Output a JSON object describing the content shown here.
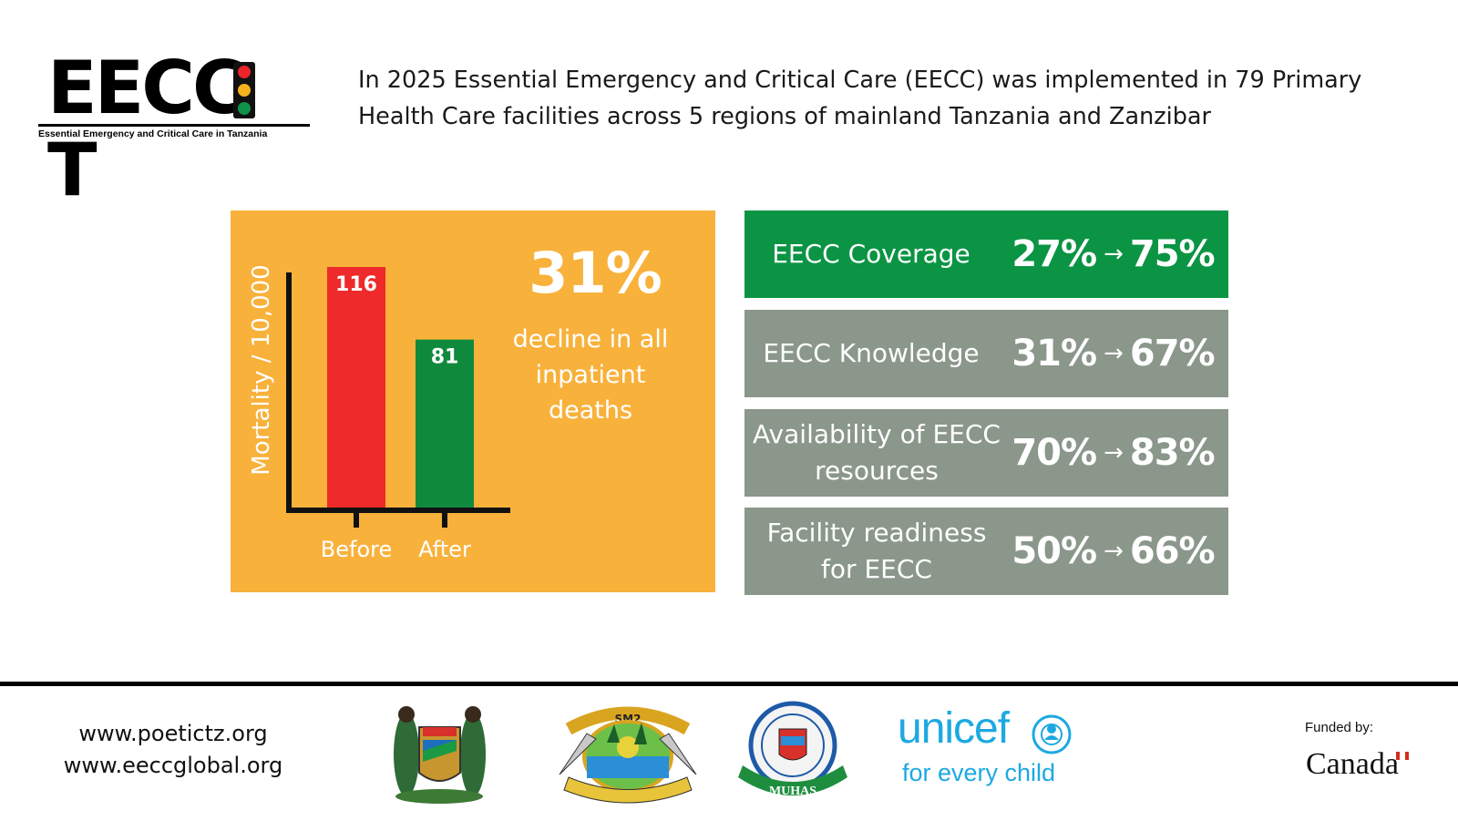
{
  "logo": {
    "title_prefix": "EECC",
    "title_suffix": "T",
    "subtitle": "Essential Emergency and Critical Care in Tanzania"
  },
  "intro_text": "In 2025 Essential Emergency and Critical Care (EECC) was implemented in 79 Primary Health Care facilities across 5 regions of mainland Tanzania and Zanzibar",
  "colors": {
    "panel_orange": "#f8b13b",
    "bar_red": "#ee2a2a",
    "bar_green": "#0f8a3c",
    "stat_green": "#0b9444",
    "stat_grey": "#8a978a",
    "unicef_blue": "#1ca9e1"
  },
  "chart_data": {
    "type": "bar",
    "title": "",
    "xlabel": "",
    "ylabel": "Mortality / 10,000",
    "categories": [
      "Before",
      "After"
    ],
    "values": [
      116,
      81
    ],
    "ylim": [
      0,
      116
    ],
    "bar_colors": [
      "#ee2a2a",
      "#0f8a3c"
    ],
    "annotation": {
      "value": "31%",
      "text": "decline in all inpatient deaths"
    }
  },
  "stats": [
    {
      "label": "EECC Coverage",
      "before": "27%",
      "after": "75%",
      "arrow": "→",
      "highlight": true
    },
    {
      "label": "EECC Knowledge",
      "before": "31%",
      "after": "67%",
      "arrow": "→",
      "highlight": false
    },
    {
      "label": "Availability of EECC resources",
      "before": "70%",
      "after": "83%",
      "arrow": "→",
      "highlight": false
    },
    {
      "label": "Facility readiness for EECC",
      "before": "50%",
      "after": "66%",
      "arrow": "→",
      "highlight": false
    }
  ],
  "footer": {
    "websites": [
      "www.poetictz.org",
      "www.eeccglobal.org"
    ],
    "emblems": [
      {
        "name": "tanzania-coat-of-arms",
        "text": ""
      },
      {
        "name": "zanzibar-emblem",
        "text": "SM2"
      },
      {
        "name": "muhas-emblem",
        "text": "MUHAS"
      }
    ],
    "unicef": {
      "word": "unicef",
      "tagline": "for every child"
    },
    "funded_by": "Funded by:",
    "funder": "Canada"
  }
}
